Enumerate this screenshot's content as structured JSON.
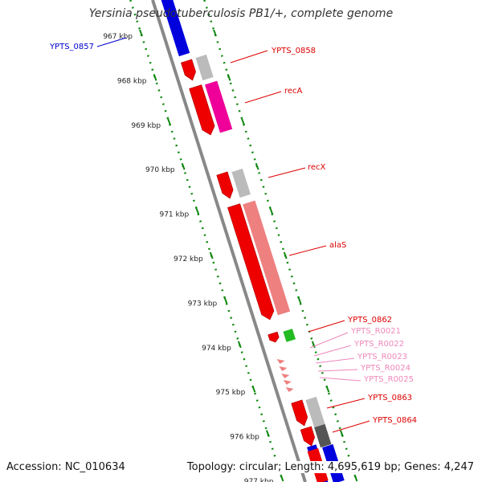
{
  "title": "Yersinia pseudotuberculosis PB1/+, complete genome",
  "footer": {
    "accession": "Accession: NC_010634",
    "topology": "Topology: circular; Length: 4,695,619 bp; Genes: 4,247"
  },
  "ticks": [
    {
      "label": "967 kbp"
    },
    {
      "label": "968 kbp"
    },
    {
      "label": "969 kbp"
    },
    {
      "label": "970 kbp"
    },
    {
      "label": "971 kbp"
    },
    {
      "label": "972 kbp"
    },
    {
      "label": "973 kbp"
    },
    {
      "label": "974 kbp"
    },
    {
      "label": "975 kbp"
    },
    {
      "label": "976 kbp"
    },
    {
      "label": "977 kbp"
    }
  ],
  "genes": [
    {
      "label": "YPTS_0857",
      "color": "#0000cc"
    },
    {
      "label": "YPTS_0858",
      "color": "#dd0000"
    },
    {
      "label": "recA",
      "color": "#dd0000"
    },
    {
      "label": "recX",
      "color": "#dd0000"
    },
    {
      "label": "alaS",
      "color": "#dd0000"
    },
    {
      "label": "YPTS_0862",
      "color": "#dd0000"
    },
    {
      "label": "YPTS_R0021",
      "color": "#ee88bb"
    },
    {
      "label": "YPTS_R0022",
      "color": "#ee88bb"
    },
    {
      "label": "YPTS_R0023",
      "color": "#ee88bb"
    },
    {
      "label": "YPTS_R0024",
      "color": "#ee88bb"
    },
    {
      "label": "YPTS_R0025",
      "color": "#ee88bb"
    },
    {
      "label": "YPTS_0863",
      "color": "#dd0000"
    },
    {
      "label": "YPTS_0864",
      "color": "#dd0000"
    }
  ],
  "colors": {
    "backbone": "#888888",
    "tick": "#118811",
    "cds": "#ee0000",
    "cog_gray": "#bbbbbb",
    "cog_magenta": "#ee0099",
    "cog_salmon": "#ee8080",
    "cog_green": "#22bb22",
    "cog_dark": "#555555",
    "blue": "#0000dd"
  }
}
